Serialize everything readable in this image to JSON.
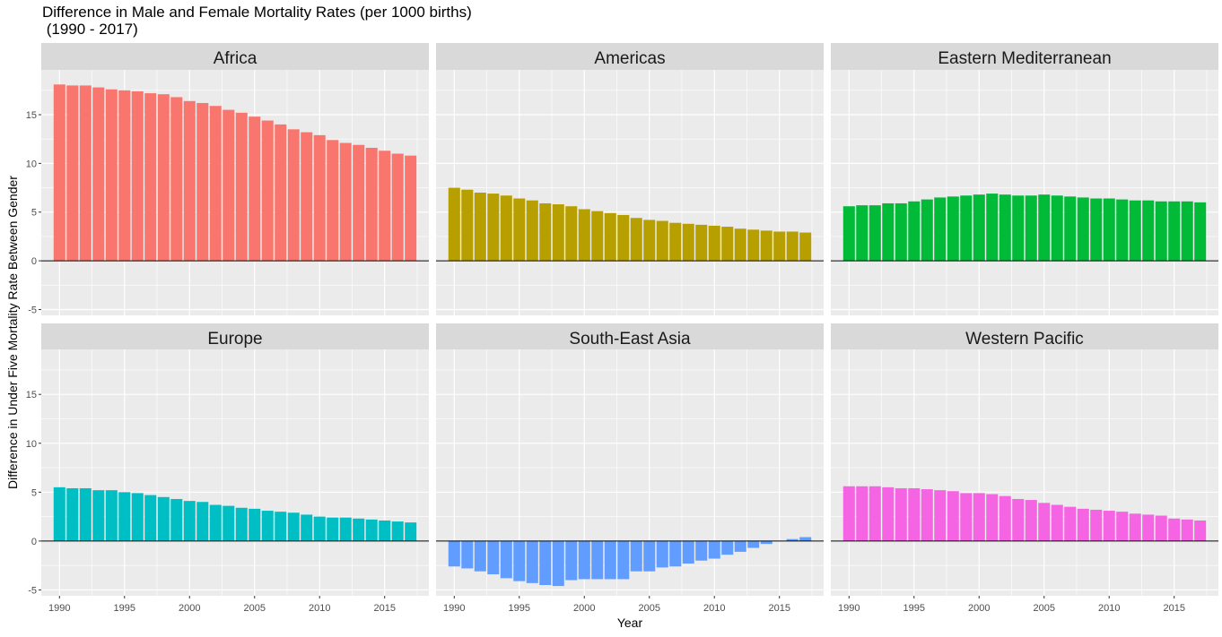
{
  "title_line1": "Difference in Male and Female Mortality Rates (per 1000 births)",
  "title_line2": " (1990 - 2017)",
  "chart_data": {
    "type": "bar",
    "xlabel": "Year",
    "ylabel": "Difference in Under Five Mortality Rate Between Gender",
    "ylim": [
      -5.6,
      19.6
    ],
    "xlim": [
      1988.6,
      2018.4
    ],
    "yticks": [
      -5,
      0,
      5,
      10,
      15
    ],
    "xticks": [
      1990,
      1995,
      2000,
      2005,
      2010,
      2015
    ],
    "grid": true,
    "legend": "none",
    "x": [
      1990,
      1991,
      1992,
      1993,
      1994,
      1995,
      1996,
      1997,
      1998,
      1999,
      2000,
      2001,
      2002,
      2003,
      2004,
      2005,
      2006,
      2007,
      2008,
      2009,
      2010,
      2011,
      2012,
      2013,
      2014,
      2015,
      2016,
      2017
    ],
    "series": [
      {
        "name": "Africa",
        "color": "#F8766D",
        "values": [
          18.1,
          18.0,
          18.0,
          17.8,
          17.6,
          17.5,
          17.4,
          17.2,
          17.1,
          16.8,
          16.4,
          16.2,
          15.9,
          15.5,
          15.2,
          14.8,
          14.4,
          14.0,
          13.5,
          13.2,
          12.9,
          12.4,
          12.1,
          11.9,
          11.6,
          11.3,
          11.0,
          10.8
        ]
      },
      {
        "name": "Americas",
        "color": "#B79F00",
        "values": [
          7.5,
          7.3,
          7.0,
          6.9,
          6.7,
          6.4,
          6.2,
          5.9,
          5.8,
          5.6,
          5.3,
          5.1,
          4.9,
          4.7,
          4.4,
          4.2,
          4.1,
          3.9,
          3.8,
          3.7,
          3.6,
          3.5,
          3.3,
          3.2,
          3.1,
          3.0,
          3.0,
          2.9
        ]
      },
      {
        "name": "Eastern Mediterranean",
        "color": "#00BA38",
        "values": [
          5.6,
          5.7,
          5.7,
          5.9,
          5.9,
          6.1,
          6.3,
          6.5,
          6.6,
          6.7,
          6.8,
          6.9,
          6.8,
          6.7,
          6.7,
          6.8,
          6.7,
          6.6,
          6.5,
          6.4,
          6.4,
          6.3,
          6.2,
          6.2,
          6.1,
          6.1,
          6.1,
          6.0
        ]
      },
      {
        "name": "Europe",
        "color": "#00BFC4",
        "values": [
          5.5,
          5.4,
          5.4,
          5.2,
          5.2,
          5.0,
          4.9,
          4.7,
          4.5,
          4.3,
          4.1,
          4.0,
          3.7,
          3.6,
          3.4,
          3.3,
          3.1,
          3.0,
          2.9,
          2.7,
          2.5,
          2.4,
          2.4,
          2.3,
          2.2,
          2.1,
          2.0,
          1.9
        ]
      },
      {
        "name": "South-East Asia",
        "color": "#619CFF",
        "values": [
          -2.6,
          -2.8,
          -3.1,
          -3.4,
          -3.8,
          -4.1,
          -4.3,
          -4.5,
          -4.6,
          -4.0,
          -3.9,
          -3.9,
          -3.9,
          -3.9,
          -3.1,
          -3.1,
          -2.7,
          -2.6,
          -2.3,
          -2.0,
          -1.8,
          -1.4,
          -1.1,
          -0.7,
          -0.3,
          0.0,
          0.2,
          0.4
        ]
      },
      {
        "name": "Western Pacific",
        "color": "#F564E3",
        "values": [
          5.6,
          5.6,
          5.6,
          5.5,
          5.4,
          5.4,
          5.3,
          5.2,
          5.1,
          4.9,
          4.9,
          4.8,
          4.6,
          4.3,
          4.2,
          3.9,
          3.7,
          3.5,
          3.3,
          3.2,
          3.1,
          3.0,
          2.8,
          2.7,
          2.6,
          2.3,
          2.2,
          2.1
        ]
      }
    ]
  }
}
